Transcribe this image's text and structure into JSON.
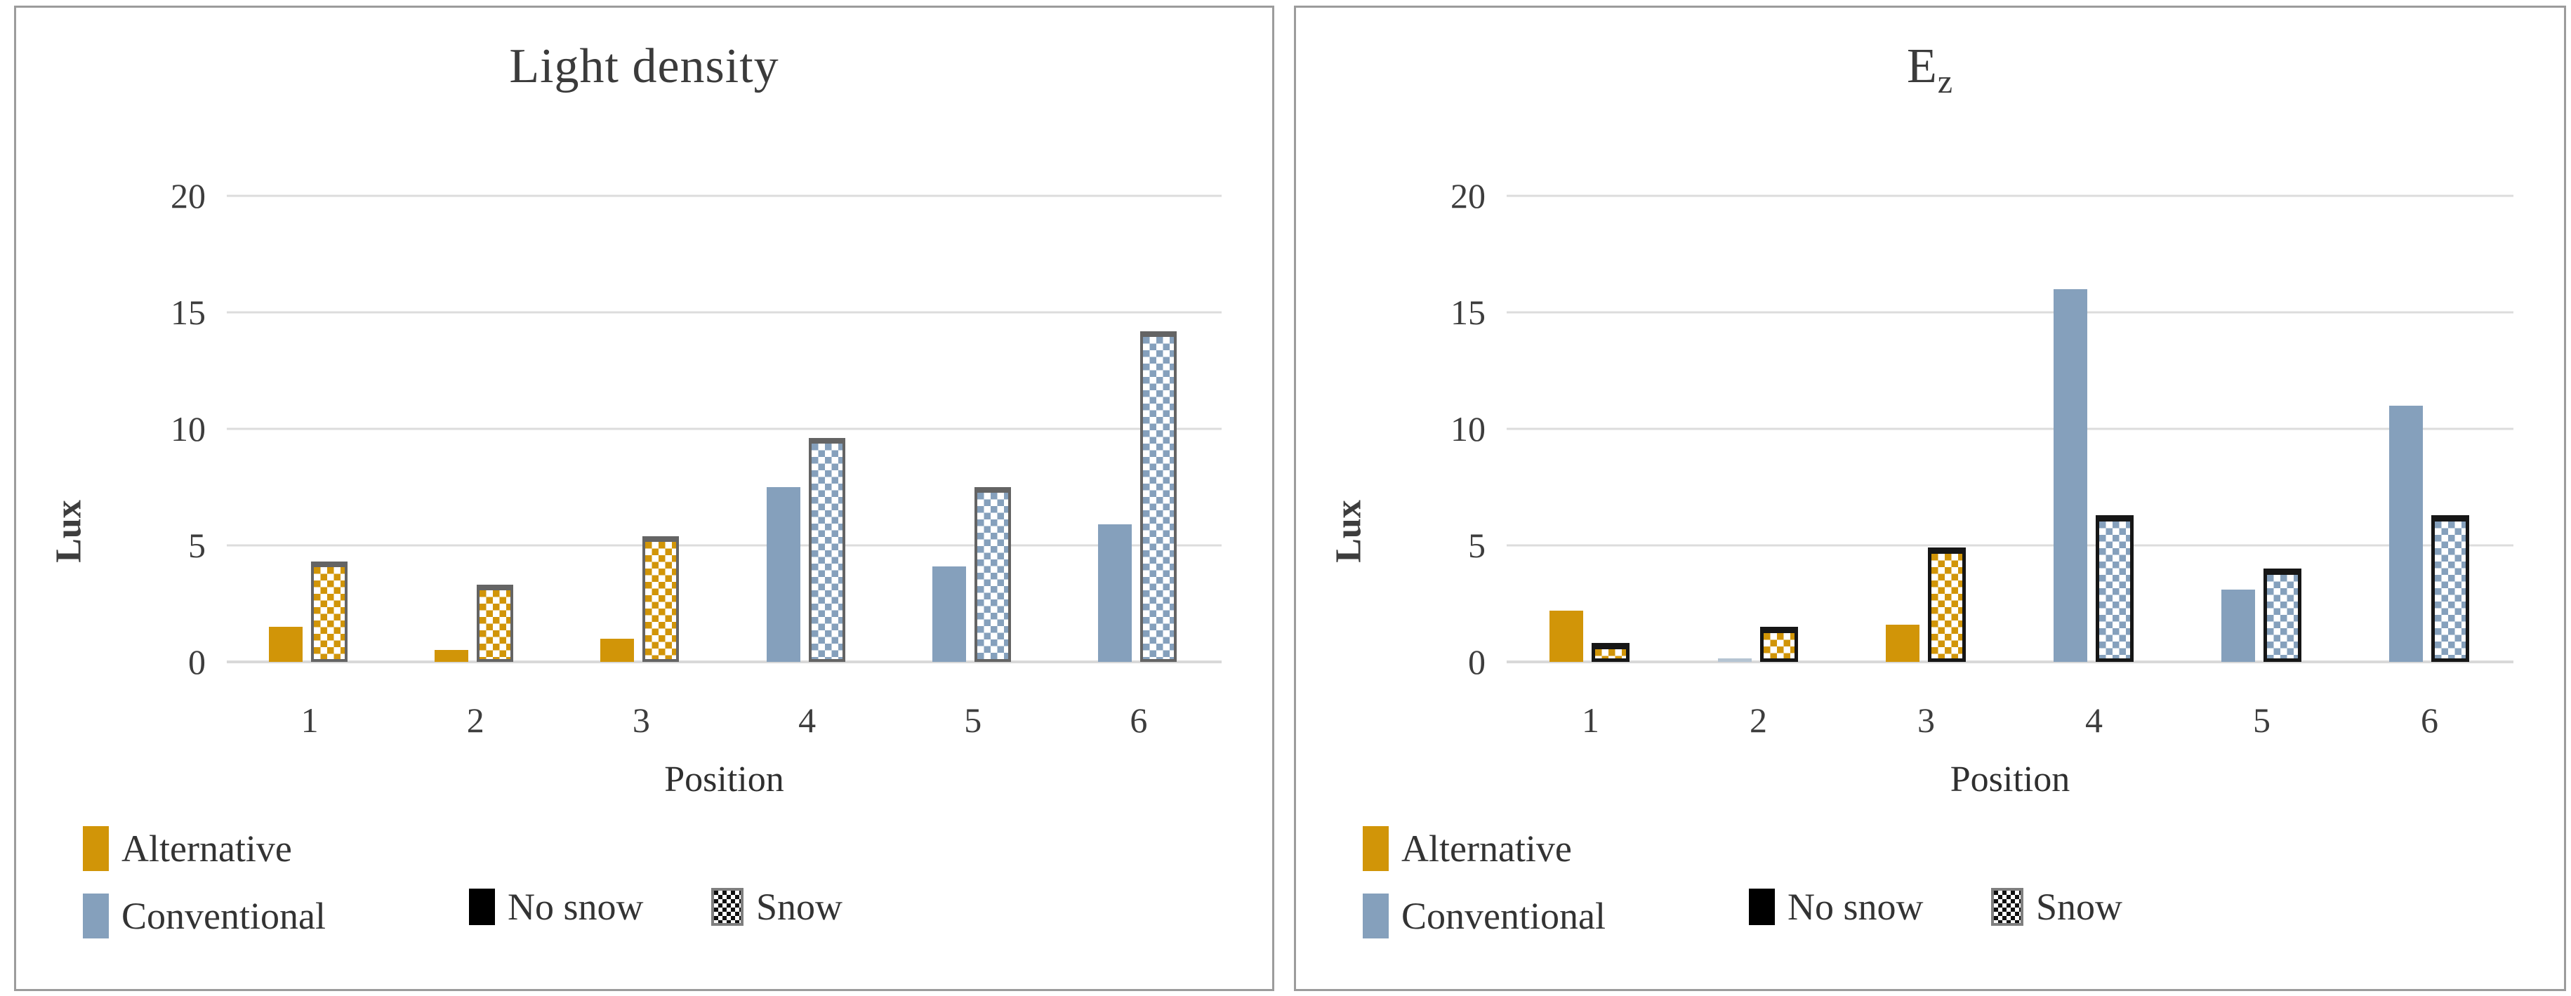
{
  "figure": {
    "background": "#ffffff",
    "panel_border_color": "#9c9c9c",
    "gridline_color": "#dcdcdc",
    "text_color": "#3d3d3d"
  },
  "chart_data": [
    {
      "type": "bar",
      "title": "Light density",
      "ylabel": "Lux",
      "xlabel": "Position",
      "ylim": [
        0,
        20
      ],
      "yticks": [
        0,
        5,
        10,
        15,
        20
      ],
      "grid": true,
      "legend_position": "bottom",
      "categories": [
        "1",
        "2",
        "3",
        "4",
        "5",
        "6"
      ],
      "category_groups": [
        "Alternative",
        "Alternative",
        "Alternative",
        "Conventional",
        "Conventional",
        "Conventional"
      ],
      "group_colors": {
        "Alternative": "#D19508",
        "Conventional": "#85A0BC"
      },
      "dotted_border_color": "#646464",
      "series": [
        {
          "name": "No snow",
          "style": "solid",
          "values": [
            1.5,
            0.5,
            1.0,
            7.5,
            4.1,
            5.9
          ]
        },
        {
          "name": "Snow",
          "style": "dotted",
          "values": [
            4.3,
            3.3,
            5.4,
            9.6,
            7.5,
            14.2
          ]
        }
      ],
      "legend": [
        {
          "label": "Alternative",
          "swatch": "solid",
          "color": "#D19508"
        },
        {
          "label": "Conventional",
          "swatch": "solid",
          "color": "#85A0BC"
        },
        {
          "label": "No snow",
          "swatch": "solid",
          "color": "#000000"
        },
        {
          "label": "Snow",
          "swatch": "dotted",
          "color": "#111111"
        }
      ]
    },
    {
      "type": "bar",
      "title": "Ez",
      "title_base": "E",
      "title_sub": "z",
      "ylabel": "Lux",
      "xlabel": "Position",
      "ylim": [
        0,
        20
      ],
      "yticks": [
        0,
        5,
        10,
        15,
        20
      ],
      "grid": true,
      "legend_position": "bottom",
      "categories": [
        "1",
        "2",
        "3",
        "4",
        "5",
        "6"
      ],
      "category_groups": [
        "Alternative",
        "Alternative",
        "Alternative",
        "Conventional",
        "Conventional",
        "Conventional"
      ],
      "group_colors": {
        "Alternative": "#D19508",
        "Conventional": "#85A0BC"
      },
      "dotted_border_color": "#161616",
      "bar_color_overrides": [
        {
          "series_index": 0,
          "category_index": 1,
          "color": "#B5C4D2"
        }
      ],
      "series": [
        {
          "name": "No snow",
          "style": "solid",
          "values": [
            2.2,
            0.15,
            1.6,
            16.0,
            3.1,
            11.0
          ]
        },
        {
          "name": "Snow",
          "style": "dotted",
          "values": [
            0.8,
            1.5,
            4.9,
            6.3,
            4.0,
            6.3
          ]
        }
      ],
      "legend": [
        {
          "label": "Alternative",
          "swatch": "solid",
          "color": "#D19508"
        },
        {
          "label": "Conventional",
          "swatch": "solid",
          "color": "#85A0BC"
        },
        {
          "label": "No snow",
          "swatch": "solid",
          "color": "#000000"
        },
        {
          "label": "Snow",
          "swatch": "dotted",
          "color": "#111111"
        }
      ]
    }
  ]
}
